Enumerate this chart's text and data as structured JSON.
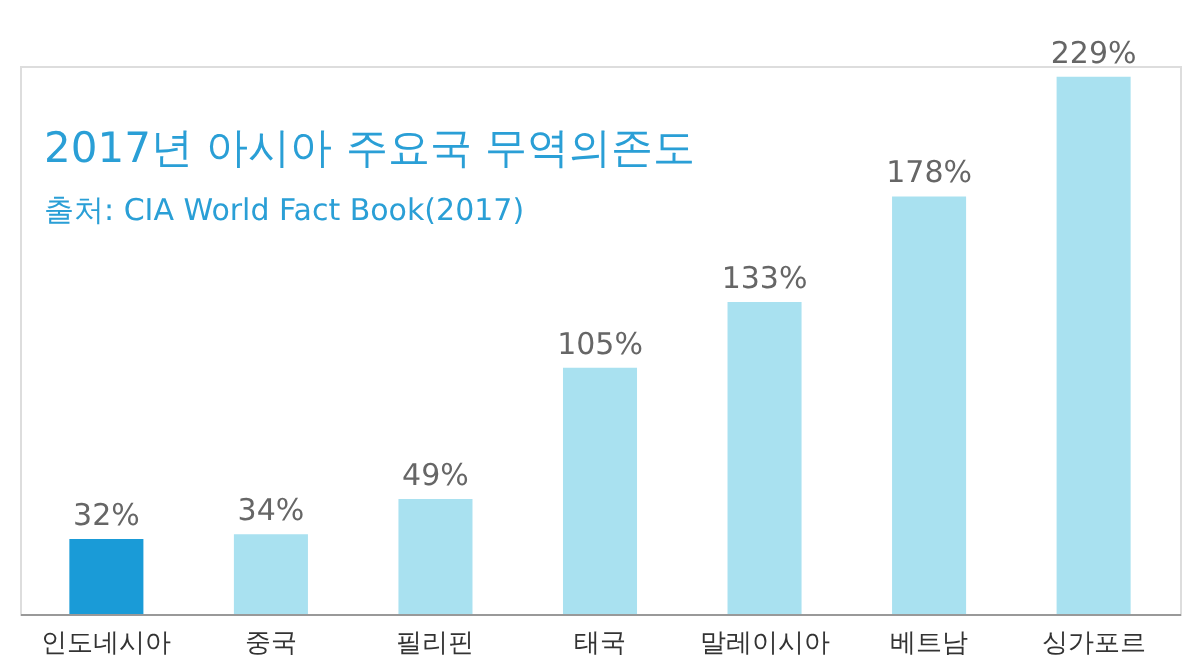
{
  "chart_data": {
    "type": "bar",
    "title": "2017년 아시아 주요국 무역의존도",
    "annotations": [
      "출처: CIA World Fact Book(2017)"
    ],
    "categories": [
      "인도네시아",
      "중국",
      "필리핀",
      "태국",
      "말레이시아",
      "베트남",
      "싱가포르"
    ],
    "values": [
      32,
      34,
      49,
      105,
      133,
      178,
      229
    ],
    "colors": [
      "#1a9bd7",
      "#a9e1f0",
      "#a9e1f0",
      "#a9e1f0",
      "#a9e1f0",
      "#a9e1f0",
      "#a9e1f0"
    ],
    "value_labels": [
      "32%",
      "34%",
      "49%",
      "105%",
      "133%",
      "178%",
      "229%"
    ],
    "grid": false
  }
}
